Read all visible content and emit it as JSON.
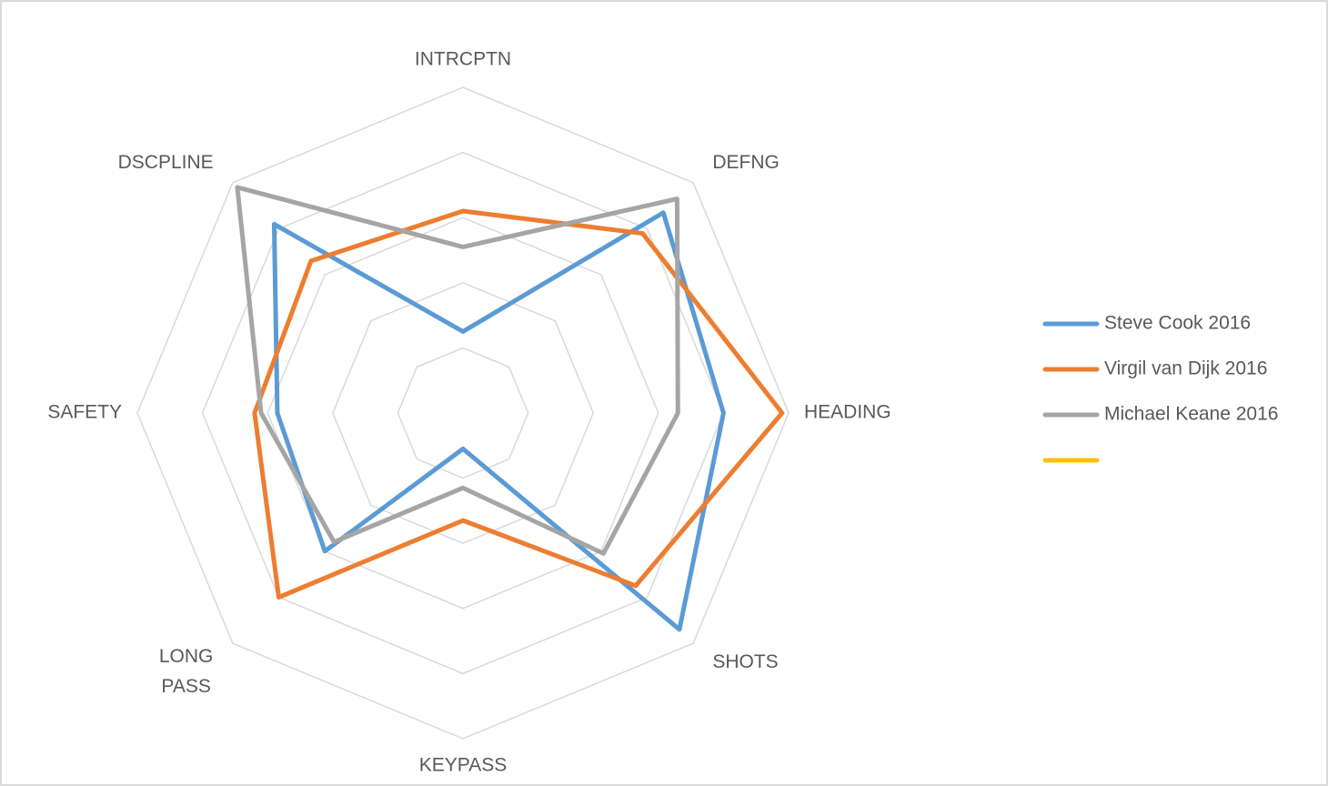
{
  "chart_data": {
    "type": "radar",
    "categories": [
      "INTRCPTN",
      "DEFNG",
      "HEADING",
      "SHOTS",
      "KEYPASS",
      "LONG PASS",
      "SAFETY",
      "DSCPLINE"
    ],
    "series": [
      {
        "name": "Steve Cook 2016",
        "color": "#5b9bd5",
        "values": [
          1.25,
          4.35,
          4.0,
          4.7,
          0.55,
          3.0,
          2.85,
          4.1
        ]
      },
      {
        "name": "Virgil van Dijk 2016",
        "color": "#ed7d31",
        "values": [
          3.1,
          3.9,
          4.9,
          3.75,
          1.65,
          4.0,
          3.2,
          3.3
        ]
      },
      {
        "name": "Michael Keane 2016",
        "color": "#a5a5a5",
        "values": [
          2.55,
          4.65,
          3.3,
          3.05,
          1.15,
          2.8,
          3.1,
          4.9
        ]
      },
      {
        "color": "#ffc000",
        "values": [
          null,
          null,
          null,
          null,
          null,
          null,
          null,
          null
        ]
      }
    ],
    "rlim": [
      0,
      5
    ],
    "rticks": [
      1,
      2,
      3,
      4,
      5
    ],
    "grid": true,
    "legend": "right"
  }
}
